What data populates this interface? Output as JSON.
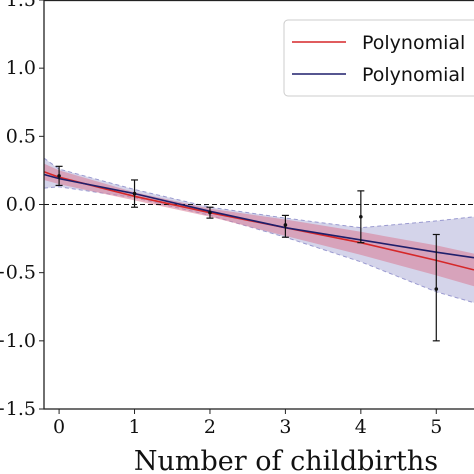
{
  "chart_data": {
    "type": "line",
    "title": "",
    "xlabel": "Number of childbirths",
    "ylabel": "",
    "xlim": [
      -0.2,
      5.5
    ],
    "ylim": [
      -1.5,
      1.5
    ],
    "x_ticks": [
      0,
      1,
      2,
      3,
      4,
      5
    ],
    "x_tick_labels": [
      "0",
      "1",
      "2",
      "3",
      "4",
      "5"
    ],
    "y_ticks": [
      1.5,
      1.0,
      0.5,
      0.0,
      -0.5,
      -1.0,
      -1.5
    ],
    "y_tick_labels": [
      "1.5",
      "1.0",
      "0.5",
      "0.0",
      "−0.5",
      "−1.0",
      "−1.5"
    ],
    "reference_line": {
      "y": 0.0,
      "style": "dashed"
    },
    "legend": {
      "placement": "top-right",
      "entries": [
        "Polynomial",
        "Polynomial"
      ]
    },
    "colors": {
      "red": "#d62728",
      "blue": "#1f1f6b",
      "red_fill": "#d97a93",
      "blue_fill": "#b8b8dc",
      "blue_dash": "#9a9ad0"
    },
    "series": [
      {
        "name": "Polynomial",
        "color": "#d62728",
        "x": [
          -0.2,
          0,
          1,
          2,
          3,
          4,
          5,
          5.5
        ],
        "y": [
          0.24,
          0.2,
          0.06,
          -0.06,
          -0.17,
          -0.28,
          -0.41,
          -0.48
        ],
        "band_lower": [
          0.18,
          0.15,
          0.03,
          -0.09,
          -0.23,
          -0.37,
          -0.52,
          -0.6
        ],
        "band_upper": [
          0.3,
          0.25,
          0.09,
          -0.03,
          -0.11,
          -0.2,
          -0.3,
          -0.36
        ]
      },
      {
        "name": "Polynomial",
        "color": "#1f1f6b",
        "x": [
          -0.2,
          0,
          1,
          2,
          3,
          4,
          5,
          5.5
        ],
        "y": [
          0.22,
          0.19,
          0.08,
          -0.05,
          -0.17,
          -0.26,
          -0.35,
          -0.39
        ],
        "band_lower": [
          0.12,
          0.13,
          0.05,
          -0.08,
          -0.24,
          -0.42,
          -0.64,
          -0.72
        ],
        "band_upper": [
          0.34,
          0.26,
          0.11,
          -0.02,
          -0.1,
          -0.17,
          -0.12,
          -0.09
        ]
      }
    ],
    "observed_points": {
      "x": [
        0,
        1,
        2,
        3,
        4,
        5
      ],
      "y": [
        0.21,
        0.08,
        -0.06,
        -0.15,
        -0.09,
        -0.62
      ],
      "err_low": [
        0.14,
        -0.02,
        -0.1,
        -0.24,
        -0.28,
        -1.0
      ],
      "err_high": [
        0.28,
        0.18,
        -0.02,
        -0.08,
        0.1,
        -0.22
      ]
    }
  }
}
